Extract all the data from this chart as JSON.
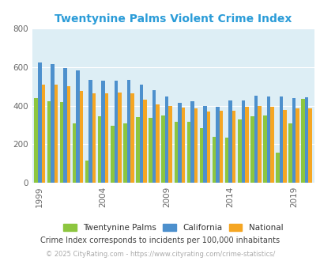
{
  "title": "Twentynine Palms Violent Crime Index",
  "subtitle": "Crime Index corresponds to incidents per 100,000 inhabitants",
  "footer": "© 2025 CityRating.com - https://www.cityrating.com/crime-statistics/",
  "years": [
    1999,
    2000,
    2001,
    2002,
    2003,
    2004,
    2005,
    2006,
    2007,
    2008,
    2009,
    2010,
    2011,
    2012,
    2013,
    2014,
    2015,
    2016,
    2017,
    2018,
    2019,
    2020
  ],
  "twentynine_palms": [
    440,
    425,
    420,
    310,
    115,
    345,
    295,
    310,
    340,
    335,
    350,
    315,
    315,
    285,
    237,
    233,
    328,
    347,
    348,
    155,
    307,
    435
  ],
  "california": [
    623,
    615,
    595,
    585,
    533,
    530,
    528,
    533,
    509,
    480,
    447,
    415,
    422,
    400,
    396,
    426,
    428,
    450,
    449,
    449,
    440,
    442
  ],
  "national": [
    510,
    508,
    500,
    475,
    465,
    465,
    470,
    465,
    430,
    405,
    400,
    390,
    387,
    368,
    375,
    375,
    395,
    398,
    395,
    380,
    385,
    385
  ],
  "ylim": [
    0,
    800
  ],
  "yticks": [
    0,
    200,
    400,
    600,
    800
  ],
  "xtick_years": [
    1999,
    2004,
    2009,
    2014,
    2019
  ],
  "color_tp": "#8dc63f",
  "color_ca": "#4d90cd",
  "color_na": "#f5a623",
  "bg_color": "#ddeef5",
  "title_color": "#2b9cd8",
  "subtitle_color": "#444444",
  "footer_color": "#aaaaaa",
  "legend_labels": [
    "Twentynine Palms",
    "California",
    "National"
  ],
  "bar_width": 0.28
}
